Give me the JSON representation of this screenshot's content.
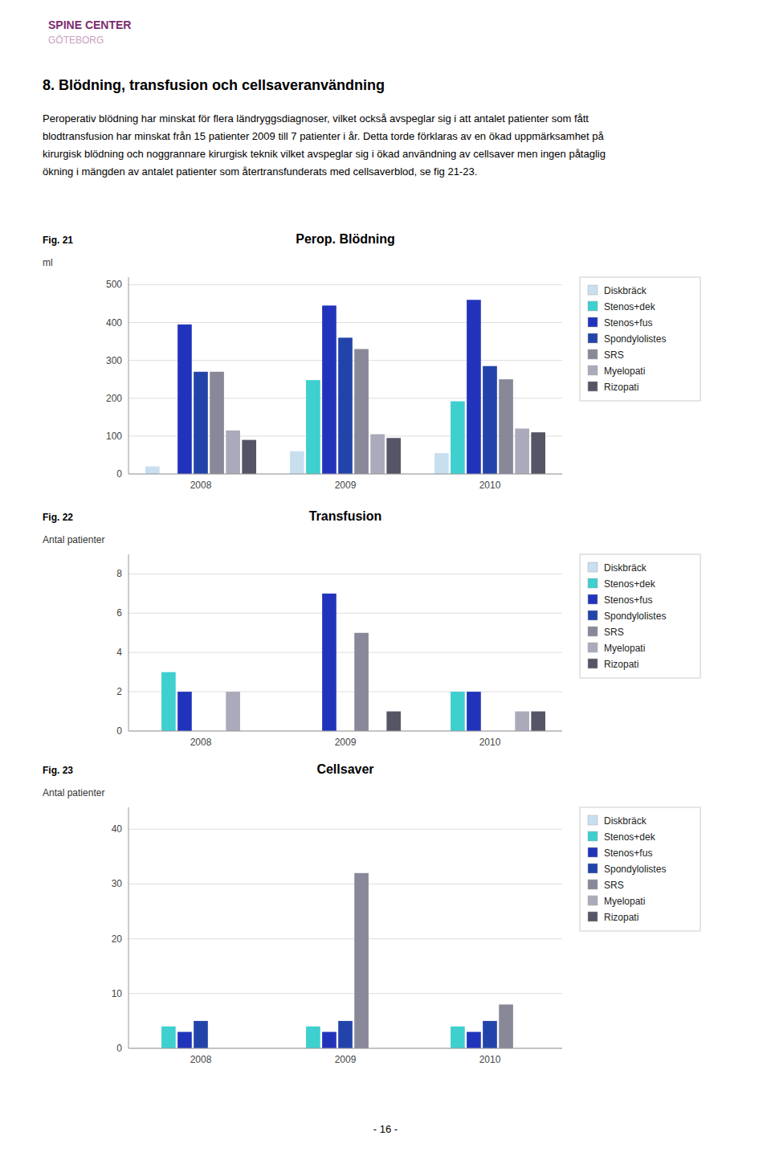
{
  "logo": {
    "name": "SPINE CENTER",
    "name_color": "#7b2d6e",
    "place": "GÖTEBORG",
    "place_color": "#c9a0c0"
  },
  "page_title": "8.  Blödning, transfusion och cellsaveranvändning",
  "body_text": [
    "Peroperativ blödning har minskat för flera ländryggsdiagnoser, vilket också avspeglar sig i att antalet patienter som fått",
    "blodtransfusion har minskat från 15 patienter 2009 till 7 patienter i år. Detta torde förklaras av en ökad uppmärksamhet på",
    "kirurgisk blödning och noggrannare kirurgisk teknik vilket avspeglar sig i ökad användning av cellsaver men ingen påtaglig",
    "ökning i mängden av antalet patienter som återtransfunderats med cellsaverblod, se fig 21-23."
  ],
  "page_number": "- 16 -",
  "chart_data": [
    {
      "type": "bar",
      "label": "Fig. 21",
      "title": "Perop. Blödning",
      "y_label": "ml",
      "categories": [
        "2008",
        "2009",
        "2010"
      ],
      "series": [
        {
          "name": "Diskbräck",
          "color": "#c8dff0",
          "values": [
            20,
            60,
            55
          ]
        },
        {
          "name": "Stenos+dek",
          "color": "#3ecfcf",
          "values": [
            0,
            248,
            192
          ]
        },
        {
          "name": "Stenos+fus",
          "color": "#2233bb",
          "values": [
            395,
            445,
            460
          ]
        },
        {
          "name": "Spondylolistes",
          "color": "#2244aa",
          "values": [
            270,
            360,
            285
          ]
        },
        {
          "name": "SRS",
          "color": "#888899",
          "values": [
            270,
            330,
            250
          ]
        },
        {
          "name": "Myelopati",
          "color": "#aaaabb",
          "values": [
            115,
            105,
            120
          ]
        },
        {
          "name": "Rizopati",
          "color": "#555566",
          "values": [
            90,
            95,
            110
          ]
        }
      ],
      "ylim": [
        0,
        520
      ],
      "yticks": [
        0,
        100,
        200,
        300,
        400,
        500
      ],
      "grid": true,
      "legend": "right"
    },
    {
      "type": "bar",
      "label": "Fig. 22",
      "title": "Transfusion",
      "y_label": "Antal patienter",
      "categories": [
        "2008",
        "2009",
        "2010"
      ],
      "series": [
        {
          "name": "Diskbräck",
          "color": "#c8dff0",
          "values": [
            0,
            0,
            0
          ]
        },
        {
          "name": "Stenos+dek",
          "color": "#3ecfcf",
          "values": [
            3,
            0,
            2
          ]
        },
        {
          "name": "Stenos+fus",
          "color": "#2233bb",
          "values": [
            2,
            7,
            2
          ]
        },
        {
          "name": "Spondylolistes",
          "color": "#2244aa",
          "values": [
            0,
            0,
            0
          ]
        },
        {
          "name": "SRS",
          "color": "#888899",
          "values": [
            0,
            5,
            0
          ]
        },
        {
          "name": "Myelopati",
          "color": "#aaaabb",
          "values": [
            2,
            0,
            1
          ]
        },
        {
          "name": "Rizopati",
          "color": "#555566",
          "values": [
            0,
            1,
            1
          ]
        }
      ],
      "ylim": [
        0,
        9
      ],
      "yticks": [
        0,
        2,
        4,
        6,
        8
      ],
      "grid": true,
      "legend": "right"
    },
    {
      "type": "bar",
      "label": "Fig. 23",
      "title": "Cellsaver",
      "y_label": "Antal patienter",
      "categories": [
        "2008",
        "2009",
        "2010"
      ],
      "series": [
        {
          "name": "Diskbräck",
          "color": "#c8dff0",
          "values": [
            0,
            0,
            0
          ]
        },
        {
          "name": "Stenos+dek",
          "color": "#3ecfcf",
          "values": [
            4,
            4,
            4
          ]
        },
        {
          "name": "Stenos+fus",
          "color": "#2233bb",
          "values": [
            3,
            3,
            3
          ]
        },
        {
          "name": "Spondylolistes",
          "color": "#2244aa",
          "values": [
            5,
            5,
            5
          ]
        },
        {
          "name": "SRS",
          "color": "#888899",
          "values": [
            0,
            32,
            8
          ]
        },
        {
          "name": "Myelopati",
          "color": "#aaaabb",
          "values": [
            0,
            0,
            0
          ]
        },
        {
          "name": "Rizopati",
          "color": "#555566",
          "values": [
            0,
            0,
            0
          ]
        }
      ],
      "ylim": [
        0,
        44
      ],
      "yticks": [
        0,
        10,
        20,
        30,
        40
      ],
      "grid": true,
      "legend": "right"
    }
  ]
}
